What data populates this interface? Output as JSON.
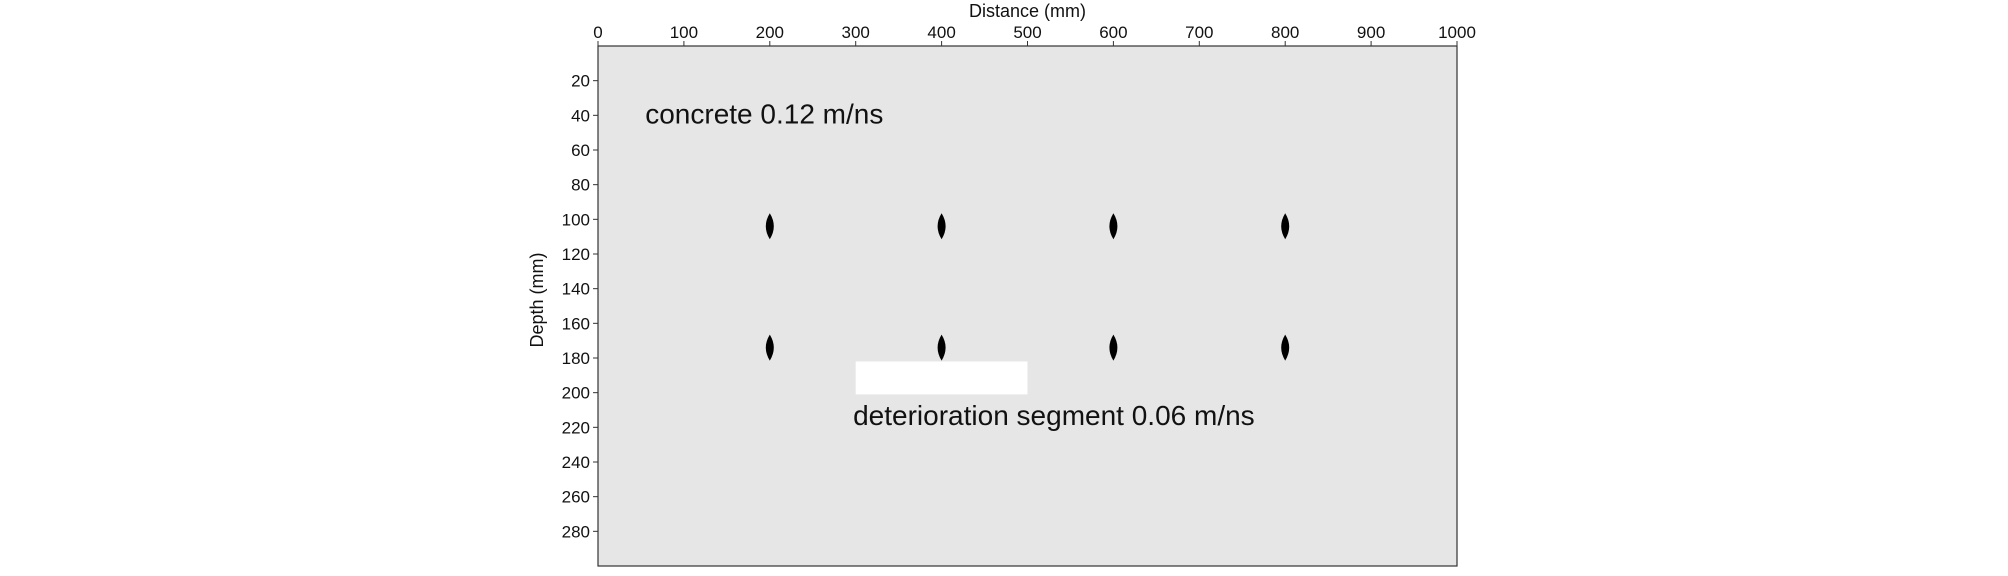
{
  "chart_data": {
    "type": "scatter",
    "title": "",
    "xlabel": "Distance (mm)",
    "ylabel": "Depth (mm)",
    "xlim": [
      0,
      1000
    ],
    "ylim": [
      0,
      300
    ],
    "x_axis_position": "top",
    "y_axis_inverted": true,
    "x_ticks": [
      0,
      100,
      200,
      300,
      400,
      500,
      600,
      700,
      800,
      900,
      1000
    ],
    "y_ticks": [
      20,
      40,
      60,
      80,
      100,
      120,
      140,
      160,
      180,
      200,
      220,
      240,
      260,
      280
    ],
    "grid": false,
    "background_color": "#e6e6e6",
    "marker_color": "#000000",
    "marker_shape": "diamond",
    "points": [
      {
        "x": 200,
        "y": 104
      },
      {
        "x": 400,
        "y": 104
      },
      {
        "x": 600,
        "y": 104
      },
      {
        "x": 800,
        "y": 104
      },
      {
        "x": 200,
        "y": 174
      },
      {
        "x": 400,
        "y": 174
      },
      {
        "x": 600,
        "y": 174
      },
      {
        "x": 800,
        "y": 174
      }
    ],
    "regions": [
      {
        "x0": 300,
        "x1": 500,
        "y0": 182,
        "y1": 201,
        "color": "#ffffff"
      }
    ],
    "annotations": [
      {
        "text": "concrete 0.12 m/ns",
        "x": 55,
        "y": 39
      },
      {
        "text": "deterioration segment 0.06 m/ns",
        "x": 297,
        "y": 213
      }
    ]
  }
}
